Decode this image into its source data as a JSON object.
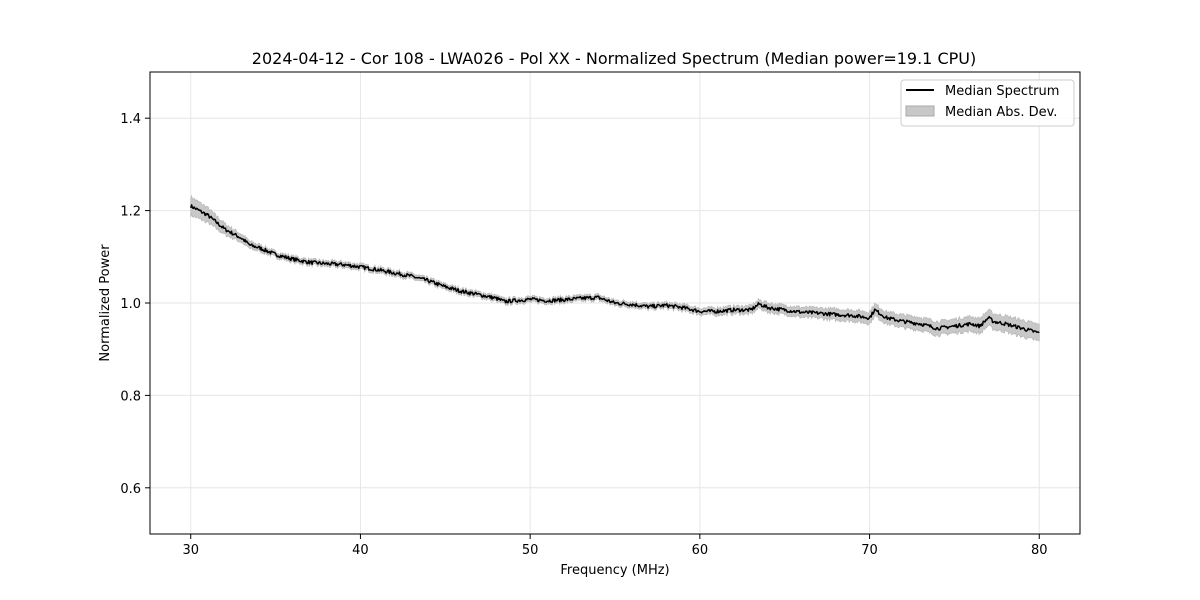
{
  "chart_data": {
    "type": "line",
    "title": "2024-04-12 - Cor 108 - LWA026 - Pol XX - Normalized Spectrum (Median power=19.1 CPU)",
    "xlabel": "Frequency (MHz)",
    "ylabel": "Normalized Power",
    "xlim": [
      27.6,
      82.4
    ],
    "ylim": [
      0.5,
      1.5
    ],
    "grid": true,
    "legend_position": "top-right",
    "x_ticks": [
      30,
      40,
      50,
      60,
      70,
      80
    ],
    "y_ticks": [
      0.6,
      0.8,
      1.0,
      1.2,
      1.4
    ],
    "x_tick_labels": [
      "30",
      "40",
      "50",
      "60",
      "70",
      "80"
    ],
    "y_tick_labels": [
      "0.6",
      "0.8",
      "1.0",
      "1.2",
      "1.4"
    ],
    "legend": {
      "median_label": "Median Spectrum",
      "mad_label": "Median Abs. Dev."
    },
    "series": [
      {
        "name": "Median Spectrum",
        "color": "#000000",
        "x": [
          30,
          30.5,
          31,
          31.5,
          32,
          32.5,
          33,
          33.5,
          34,
          35,
          35.5,
          36,
          37,
          38,
          39,
          40,
          41,
          42,
          43,
          44,
          45,
          46,
          47,
          48,
          48.5,
          49,
          50,
          51,
          52,
          53,
          54,
          55,
          56,
          57,
          58,
          59,
          60,
          61,
          62,
          63,
          63.5,
          64,
          65,
          66,
          67,
          68,
          69,
          70,
          70.3,
          71,
          72,
          73,
          74,
          75,
          76,
          76.5,
          77,
          77.3,
          78,
          79,
          80
        ],
        "values": [
          1.21,
          1.2,
          1.19,
          1.175,
          1.16,
          1.15,
          1.14,
          1.125,
          1.12,
          1.105,
          1.1,
          1.095,
          1.088,
          1.085,
          1.083,
          1.078,
          1.072,
          1.065,
          1.058,
          1.048,
          1.035,
          1.025,
          1.018,
          1.01,
          1.003,
          1.005,
          1.008,
          1.005,
          1.007,
          1.01,
          1.012,
          1.0,
          0.997,
          0.992,
          0.995,
          0.99,
          0.982,
          0.982,
          0.985,
          0.985,
          0.998,
          0.99,
          0.985,
          0.98,
          0.978,
          0.975,
          0.973,
          0.968,
          0.985,
          0.968,
          0.96,
          0.955,
          0.945,
          0.95,
          0.955,
          0.95,
          0.968,
          0.96,
          0.955,
          0.945,
          0.935
        ]
      },
      {
        "name": "Median Abs. Dev.",
        "color": "#c8c8c8",
        "spread": [
          0.02,
          0.018,
          0.016,
          0.014,
          0.012,
          0.01,
          0.009,
          0.008,
          0.007,
          0.006,
          0.006,
          0.006,
          0.006,
          0.006,
          0.006,
          0.006,
          0.006,
          0.006,
          0.006,
          0.006,
          0.006,
          0.006,
          0.006,
          0.006,
          0.006,
          0.006,
          0.006,
          0.006,
          0.006,
          0.006,
          0.006,
          0.006,
          0.006,
          0.006,
          0.006,
          0.007,
          0.007,
          0.008,
          0.008,
          0.009,
          0.009,
          0.01,
          0.01,
          0.011,
          0.011,
          0.012,
          0.012,
          0.013,
          0.013,
          0.013,
          0.014,
          0.014,
          0.015,
          0.015,
          0.016,
          0.016,
          0.017,
          0.017,
          0.017,
          0.018,
          0.018
        ]
      }
    ]
  }
}
